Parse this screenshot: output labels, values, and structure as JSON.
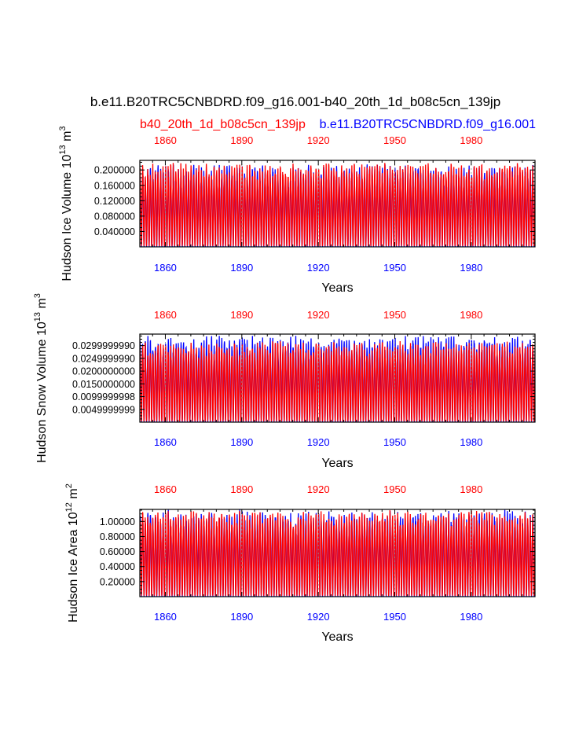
{
  "title": "b.e11.B20TRC5CNBDRD.f09_g16.001-b40_20th_1d_b08c5cn_139jp",
  "legend": {
    "red_label": "b40_20th_1d_b08c5cn_139jp",
    "blue_label": "b.e11.B20TRC5CNBDRD.f09_g16.001"
  },
  "colors": {
    "red": "#ff0000",
    "blue": "#0000ff",
    "axis": "#000000",
    "grid": "#888888"
  },
  "chart_data": [
    {
      "type": "line",
      "ylabel_main": "Hudson Ice Volume 10",
      "ylabel_exp": "13",
      "ylabel_unit": " m",
      "ylabel_unit_exp": "3",
      "xlabel": "Years",
      "xlim": [
        1850,
        2005
      ],
      "ylim": [
        0,
        0.225
      ],
      "xticks": [
        "1860",
        "1890",
        "1920",
        "1950",
        "1980"
      ],
      "yticks": [
        "0.200000",
        "0.160000",
        "0.120000",
        "0.080000",
        "0.040000"
      ],
      "ytick_values": [
        0.2,
        0.16,
        0.12,
        0.08,
        0.04
      ],
      "series": [
        {
          "name": "b.e11.B20TRC5CNBDRD.f09_g16.001",
          "color": "blue",
          "min": 0.0,
          "max": 0.215,
          "seasonal": true,
          "period_years": 1
        },
        {
          "name": "b40_20th_1d_b08c5cn_139jp",
          "color": "red",
          "min": 0.0,
          "max": 0.22,
          "seasonal": true,
          "period_years": 1
        }
      ]
    },
    {
      "type": "line",
      "ylabel_main": "Hudson Snow Volume 10",
      "ylabel_exp": "13",
      "ylabel_unit": " m",
      "ylabel_unit_exp": "3",
      "xlabel": "Years",
      "xlim": [
        1850,
        2005
      ],
      "ylim": [
        0,
        0.0345
      ],
      "xticks": [
        "1860",
        "1890",
        "1920",
        "1950",
        "1980"
      ],
      "yticks": [
        "0.0299999990",
        "0.0249999990",
        "0.0200000000",
        "0.0150000000",
        "0.0099999998",
        "0.0049999999"
      ],
      "ytick_values": [
        0.03,
        0.025,
        0.02,
        0.015,
        0.01,
        0.005
      ],
      "series": [
        {
          "name": "b.e11.B20TRC5CNBDRD.f09_g16.001",
          "color": "blue",
          "min": 0.0,
          "max": 0.034,
          "seasonal": true,
          "period_years": 1
        },
        {
          "name": "b40_20th_1d_b08c5cn_139jp",
          "color": "red",
          "min": 0.0,
          "max": 0.032,
          "seasonal": true,
          "period_years": 1
        }
      ]
    },
    {
      "type": "line",
      "ylabel_main": "Hudson Ice Area 10",
      "ylabel_exp": "12",
      "ylabel_unit": " m",
      "ylabel_unit_exp": "2",
      "xlabel": "Years",
      "xlim": [
        1850,
        2005
      ],
      "ylim": [
        0,
        1.16
      ],
      "xticks": [
        "1860",
        "1890",
        "1920",
        "1950",
        "1980"
      ],
      "yticks": [
        "1.00000",
        "0.80000",
        "0.60000",
        "0.40000",
        "0.20000"
      ],
      "ytick_values": [
        1.0,
        0.8,
        0.6,
        0.4,
        0.2
      ],
      "series": [
        {
          "name": "b.e11.B20TRC5CNBDRD.f09_g16.001",
          "color": "blue",
          "min": 0.0,
          "max": 1.16,
          "seasonal": true,
          "period_years": 1
        },
        {
          "name": "b40_20th_1d_b08c5cn_139jp",
          "color": "red",
          "min": 0.0,
          "max": 1.16,
          "seasonal": true,
          "period_years": 1
        }
      ]
    }
  ]
}
